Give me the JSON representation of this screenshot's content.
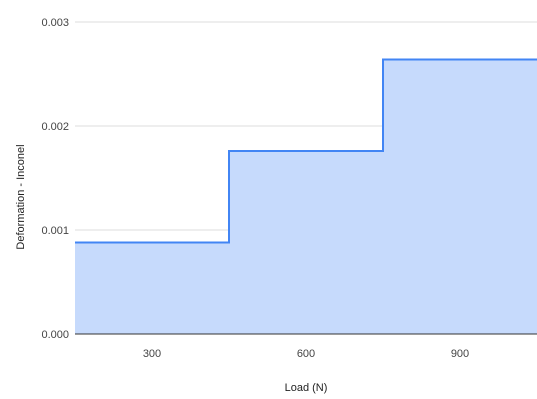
{
  "chart_data": {
    "type": "area",
    "step": true,
    "title": "",
    "xlabel": "Load (N)",
    "ylabel": "Deformation - Inconel",
    "categories": [
      "300",
      "600",
      "900"
    ],
    "series": [
      {
        "values": [
          0.00088,
          0.00176,
          0.00264
        ]
      }
    ],
    "ylim": [
      0,
      0.003
    ],
    "yticks": [
      "0.000",
      "0.001",
      "0.002",
      "0.003"
    ],
    "grid": true,
    "legend": "none",
    "colors": {
      "fill": "#c6dafc",
      "line": "#4285f4",
      "grid": "#dddddd",
      "baseline": "#333333"
    }
  }
}
